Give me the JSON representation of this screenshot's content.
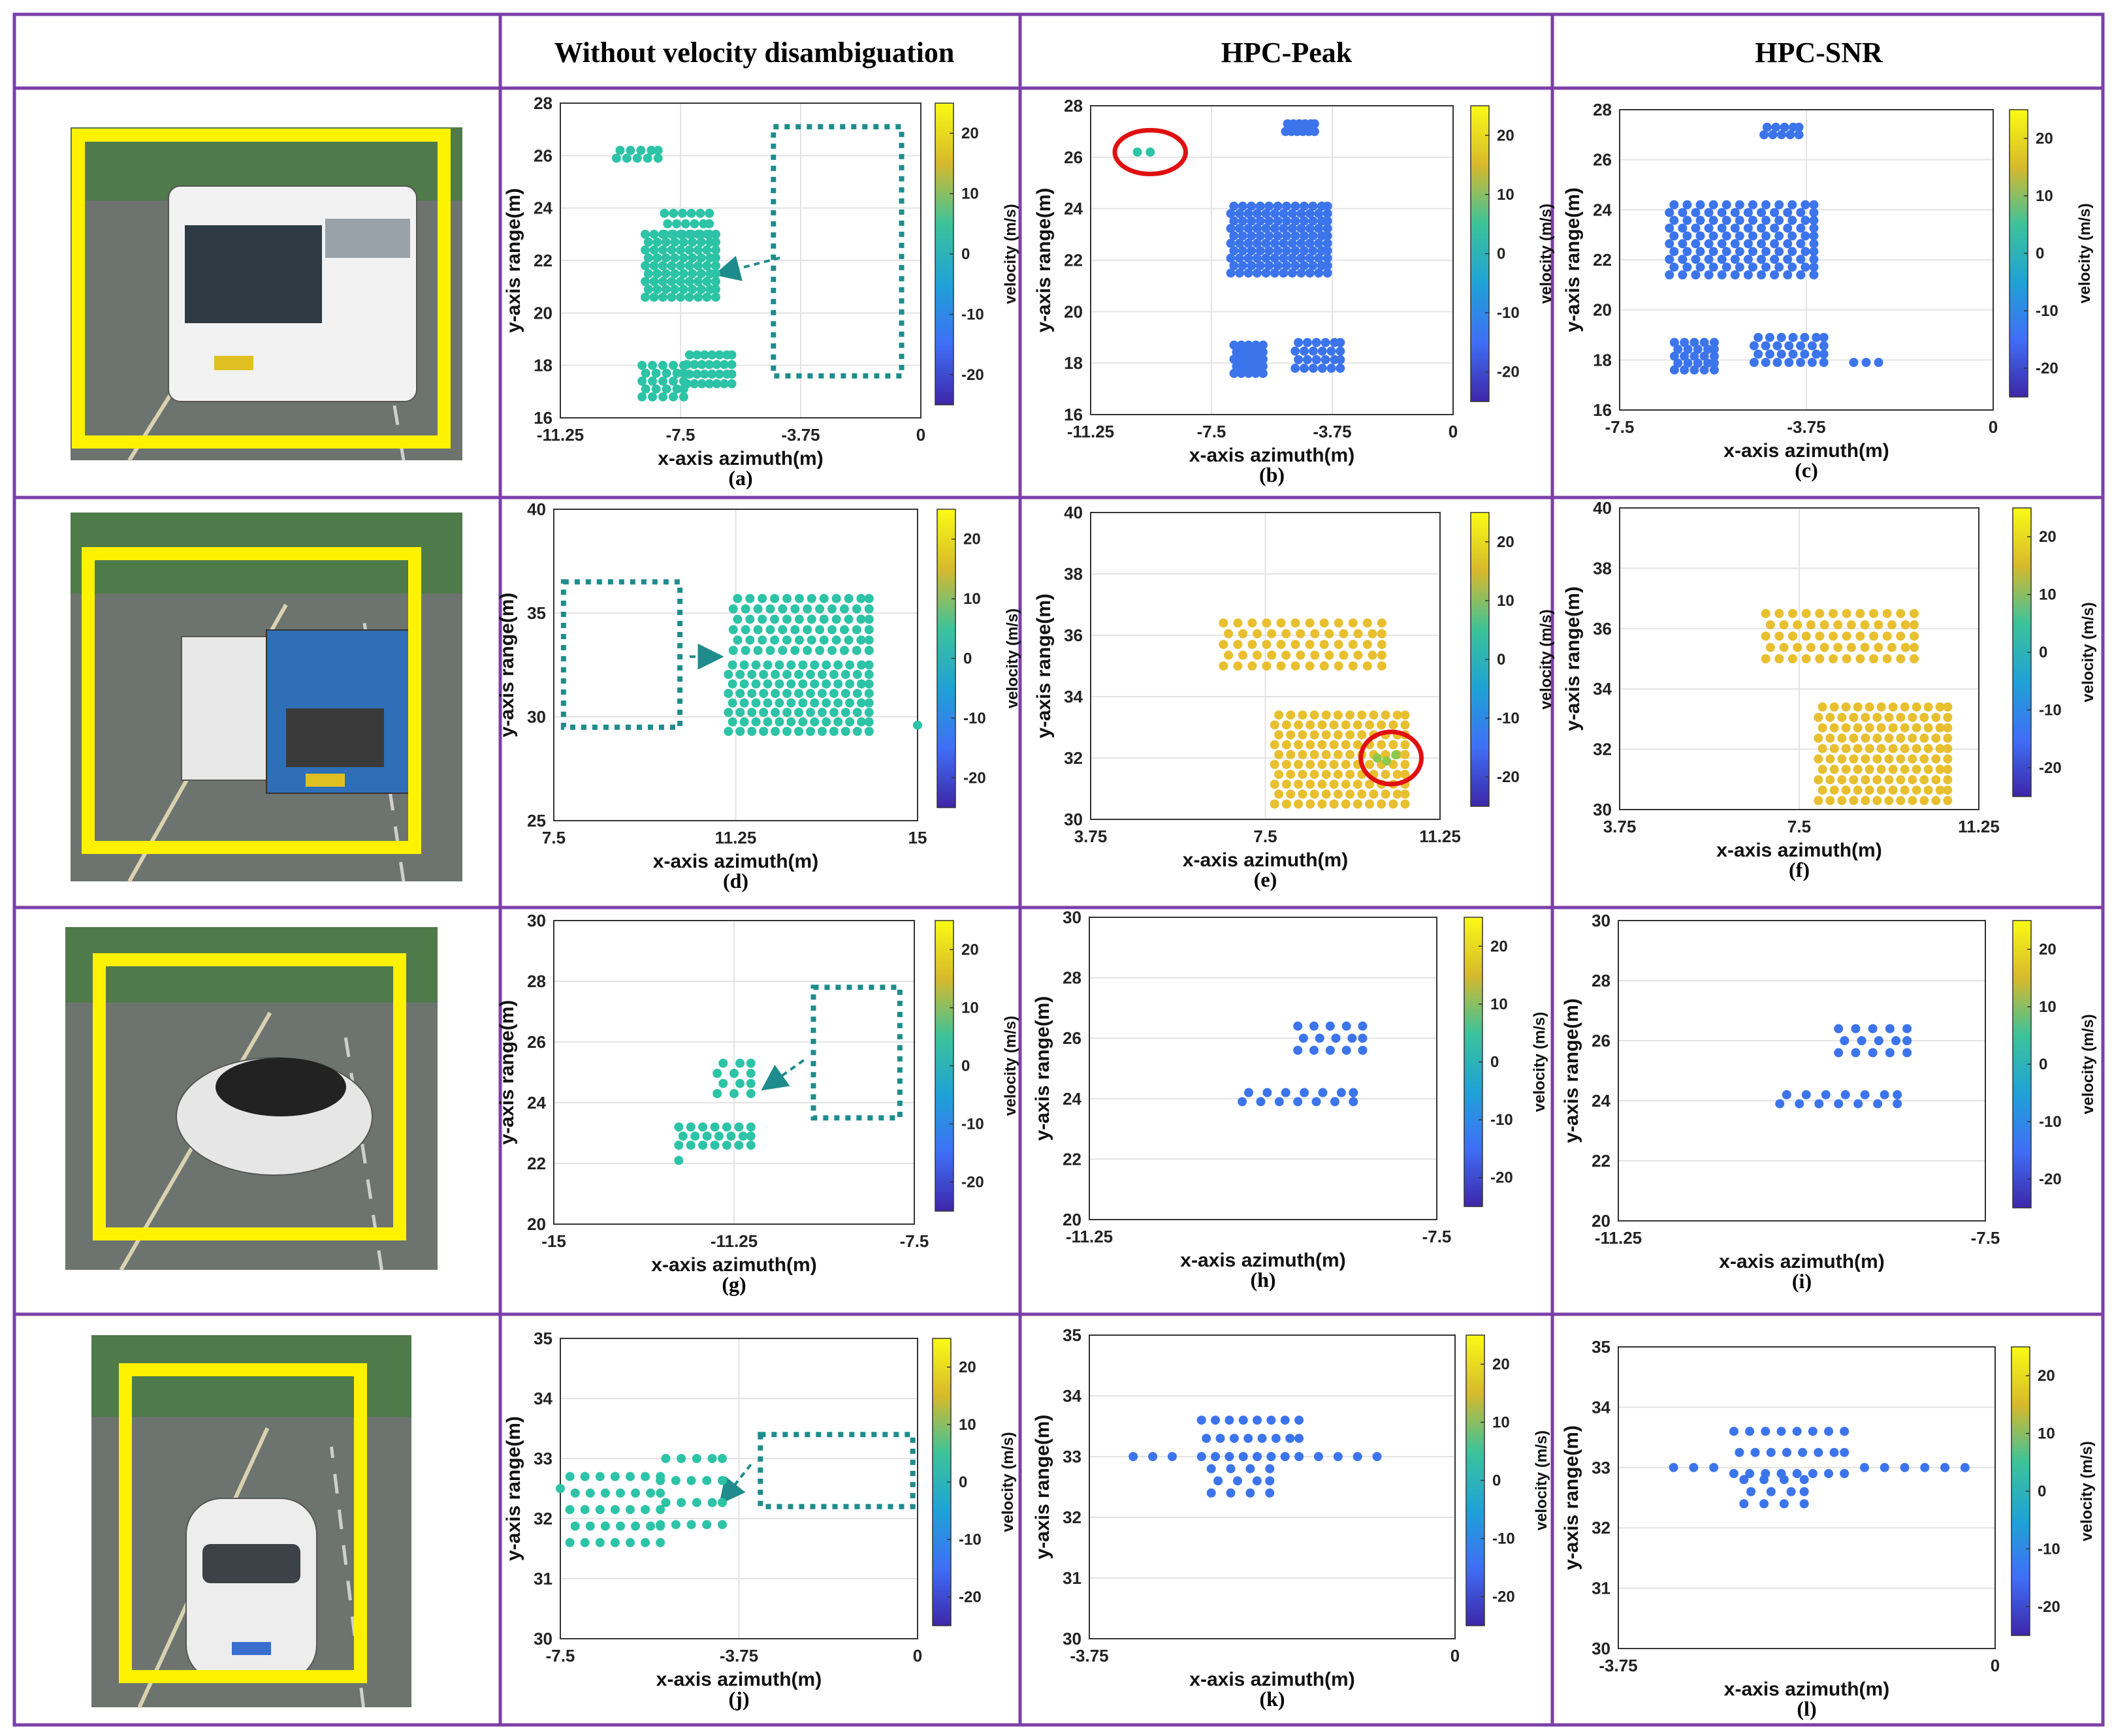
{
  "headers": [
    "",
    "Without velocity disambiguation",
    "HPC-Peak",
    "HPC-SNR"
  ],
  "colors": {
    "grid_border": "#7b3fa8",
    "teal": "#2cc3a6",
    "blue": "#3c74ec",
    "yellow": "#e8bf2e",
    "green": "#8cc84a",
    "dotted_box": "#1e8c8c",
    "circle": "#e01010",
    "photo_frame": "#fff200"
  },
  "photos": [
    {
      "vehicle": "bus-icon"
    },
    {
      "vehicle": "garbage-truck-icon"
    },
    {
      "vehicle": "car-icon"
    },
    {
      "vehicle": "sedan-icon"
    }
  ],
  "colorbar": {
    "label": "velocity (m/s)",
    "ticks": [
      -20,
      -10,
      0,
      10,
      20
    ],
    "range": [
      -25,
      25
    ]
  },
  "chart_data": [
    {
      "id": "a",
      "type": "scatter",
      "label": "(a)",
      "xlabel": "x-axis azimuth(m)",
      "ylabel": "y-axis range(m)",
      "xlim": [
        -11.25,
        0
      ],
      "ylim": [
        16,
        28
      ],
      "xticks": [
        -11.25,
        -7.5,
        -3.75,
        0
      ],
      "yticks": [
        16,
        18,
        20,
        22,
        24,
        26,
        28
      ],
      "velocity": 0,
      "clusters": [
        {
          "x": [
            -9.5,
            -8.2
          ],
          "y": [
            25.9,
            26.2
          ],
          "rows": 2,
          "cols": 5
        },
        {
          "x": [
            -8.0,
            -6.6
          ],
          "y": [
            23.0,
            23.8
          ],
          "rows": 3,
          "cols": 6
        },
        {
          "x": [
            -8.6,
            -6.4
          ],
          "y": [
            20.6,
            23.0
          ],
          "rows": 9,
          "cols": 9
        },
        {
          "x": [
            -8.7,
            -7.4
          ],
          "y": [
            16.8,
            18.0
          ],
          "rows": 5,
          "cols": 5
        },
        {
          "x": [
            -7.3,
            -5.9
          ],
          "y": [
            17.3,
            18.4
          ],
          "rows": 4,
          "cols": 7
        }
      ],
      "dotted_box": {
        "x": [
          -4.6,
          -0.6
        ],
        "y": [
          17.6,
          27.1
        ]
      },
      "arrow": {
        "from": [
          -4.4,
          22.1
        ],
        "to": [
          -6.3,
          21.5
        ]
      }
    },
    {
      "id": "b",
      "type": "scatter",
      "label": "(b)",
      "xlabel": "x-axis azimuth(m)",
      "ylabel": "y-axis range(m)",
      "xlim": [
        -11.25,
        0
      ],
      "ylim": [
        16,
        28
      ],
      "xticks": [
        -11.25,
        -7.5,
        -3.75,
        0
      ],
      "yticks": [
        16,
        18,
        20,
        22,
        24,
        26,
        28
      ],
      "velocity": -12,
      "clusters": [
        {
          "x": [
            -5.2,
            -4.3
          ],
          "y": [
            27.0,
            27.3
          ],
          "rows": 2,
          "cols": 6
        },
        {
          "x": [
            -6.9,
            -3.9
          ],
          "y": [
            21.5,
            24.1
          ],
          "rows": 10,
          "cols": 12
        },
        {
          "x": [
            -6.8,
            -5.9
          ],
          "y": [
            17.6,
            18.7
          ],
          "rows": 5,
          "cols": 5
        },
        {
          "x": [
            -4.9,
            -3.5
          ],
          "y": [
            17.8,
            18.8
          ],
          "rows": 4,
          "cols": 6
        }
      ],
      "points_green": {
        "x": [
          -9.8,
          -9.4
        ],
        "y": [
          26.2,
          26.2
        ]
      },
      "circle": {
        "x": -9.4,
        "y": 26.2,
        "rx": 1.1,
        "ry": 0.85
      }
    },
    {
      "id": "c",
      "type": "scatter",
      "label": "(c)",
      "xlabel": "x-axis azimuth(m)",
      "ylabel": "y-axis range(m)",
      "xlim": [
        -7.5,
        0
      ],
      "ylim": [
        16,
        28
      ],
      "xticks": [
        -7.5,
        -3.75,
        0
      ],
      "yticks": [
        16,
        18,
        20,
        22,
        24,
        26,
        28
      ],
      "velocity": -12,
      "clusters": [
        {
          "x": [
            -4.6,
            -3.9
          ],
          "y": [
            27.0,
            27.3
          ],
          "rows": 2,
          "cols": 5
        },
        {
          "x": [
            -6.5,
            -3.6
          ],
          "y": [
            21.4,
            24.2
          ],
          "rows": 10,
          "cols": 12
        },
        {
          "x": [
            -6.4,
            -5.6
          ],
          "y": [
            17.6,
            18.7
          ],
          "rows": 5,
          "cols": 5
        },
        {
          "x": [
            -4.8,
            -3.4
          ],
          "y": [
            17.9,
            18.9
          ],
          "rows": 4,
          "cols": 7
        },
        {
          "x": [
            -2.8,
            -2.3
          ],
          "y": [
            17.9,
            17.9
          ],
          "rows": 1,
          "cols": 3
        }
      ]
    },
    {
      "id": "d",
      "type": "scatter",
      "label": "(d)",
      "xlabel": "x-axis azimuth(m)",
      "ylabel": "y-axis range(m)",
      "xlim": [
        7.5,
        15
      ],
      "ylim": [
        25,
        40
      ],
      "xticks": [
        7.5,
        11.25,
        15
      ],
      "yticks": [
        25,
        30,
        35,
        40
      ],
      "velocity": 0,
      "clusters": [
        {
          "x": [
            11.2,
            14.0
          ],
          "y": [
            33.2,
            35.7
          ],
          "rows": 6,
          "cols": 12
        },
        {
          "x": [
            11.1,
            14.0
          ],
          "y": [
            29.3,
            32.5
          ],
          "rows": 8,
          "cols": 13
        }
      ],
      "points": {
        "x": [
          15.0
        ],
        "y": [
          29.6
        ]
      },
      "dotted_box": {
        "x": [
          7.7,
          10.1
        ],
        "y": [
          29.5,
          36.5
        ]
      },
      "arrow": {
        "from": [
          10.3,
          32.9
        ],
        "to": [
          10.9,
          32.9
        ]
      }
    },
    {
      "id": "e",
      "type": "scatter",
      "label": "(e)",
      "xlabel": "x-axis azimuth(m)",
      "ylabel": "y-axis range(m)",
      "xlim": [
        3.75,
        11.25
      ],
      "ylim": [
        30,
        40
      ],
      "xticks": [
        3.75,
        7.5,
        11.25
      ],
      "yticks": [
        30,
        32,
        34,
        36,
        38,
        40
      ],
      "velocity": 17,
      "clusters": [
        {
          "x": [
            6.6,
            10.0
          ],
          "y": [
            35.0,
            36.4
          ],
          "rows": 5,
          "cols": 12
        },
        {
          "x": [
            7.7,
            10.5
          ],
          "y": [
            30.5,
            33.4
          ],
          "rows": 10,
          "cols": 12
        }
      ],
      "points_green": {
        "x": [
          9.9,
          10.1,
          10.3
        ],
        "y": [
          32.0,
          31.9,
          32.1
        ]
      },
      "circle": {
        "x": 10.2,
        "y": 32.0,
        "rx": 0.65,
        "ry": 0.85
      }
    },
    {
      "id": "f",
      "type": "scatter",
      "label": "(f)",
      "xlabel": "x-axis azimuth(m)",
      "ylabel": "y-axis range(m)",
      "xlim": [
        3.75,
        11.25
      ],
      "ylim": [
        30,
        40
      ],
      "xticks": [
        3.75,
        7.5,
        11.25
      ],
      "yticks": [
        30,
        32,
        34,
        36,
        38,
        40
      ],
      "velocity": 17,
      "clusters": [
        {
          "x": [
            6.8,
            9.9
          ],
          "y": [
            35.0,
            36.5
          ],
          "rows": 5,
          "cols": 12
        },
        {
          "x": [
            7.9,
            10.6
          ],
          "y": [
            30.3,
            33.4
          ],
          "rows": 10,
          "cols": 12
        }
      ]
    },
    {
      "id": "g",
      "type": "scatter",
      "label": "(g)",
      "xlabel": "x-axis azimuth(m)",
      "ylabel": "y-axis range(m)",
      "xlim": [
        -15,
        -7.5
      ],
      "ylim": [
        20,
        30
      ],
      "xticks": [
        -15,
        -11.25,
        -7.5
      ],
      "yticks": [
        20,
        22,
        24,
        26,
        28,
        30
      ],
      "velocity": 0,
      "clusters": [
        {
          "x": [
            -11.6,
            -10.9
          ],
          "y": [
            24.3,
            25.3
          ],
          "rows": 4,
          "cols": 3
        },
        {
          "x": [
            -12.4,
            -10.9
          ],
          "y": [
            22.6,
            23.2
          ],
          "rows": 3,
          "cols": 7
        }
      ],
      "points": {
        "x": [
          -12.4
        ],
        "y": [
          22.1
        ]
      },
      "dotted_box": {
        "x": [
          -9.6,
          -7.8
        ],
        "y": [
          23.5,
          27.8
        ]
      },
      "arrow": {
        "from": [
          -9.8,
          25.4
        ],
        "to": [
          -10.6,
          24.5
        ]
      }
    },
    {
      "id": "h",
      "type": "scatter",
      "label": "(h)",
      "xlabel": "x-axis azimuth(m)",
      "ylabel": "y-axis range(m)",
      "xlim": [
        -11.25,
        -7.5
      ],
      "ylim": [
        20,
        30
      ],
      "xticks": [
        -11.25,
        -7.5
      ],
      "yticks": [
        20,
        22,
        24,
        26,
        28,
        30
      ],
      "velocity": -12,
      "clusters": [
        {
          "x": [
            -9.0,
            -8.3
          ],
          "y": [
            25.6,
            26.4
          ],
          "rows": 3,
          "cols": 5
        },
        {
          "x": [
            -9.6,
            -8.4
          ],
          "y": [
            23.9,
            24.2
          ],
          "rows": 2,
          "cols": 7
        }
      ]
    },
    {
      "id": "i",
      "type": "scatter",
      "label": "(i)",
      "xlabel": "x-axis azimuth(m)",
      "ylabel": "y-axis range(m)",
      "xlim": [
        -11.25,
        -7.5
      ],
      "ylim": [
        20,
        30
      ],
      "xticks": [
        -11.25,
        -7.5
      ],
      "yticks": [
        20,
        22,
        24,
        26,
        28,
        30
      ],
      "velocity": -12,
      "clusters": [
        {
          "x": [
            -9.0,
            -8.3
          ],
          "y": [
            25.6,
            26.4
          ],
          "rows": 3,
          "cols": 5
        },
        {
          "x": [
            -9.6,
            -8.4
          ],
          "y": [
            23.9,
            24.2
          ],
          "rows": 2,
          "cols": 7
        }
      ]
    },
    {
      "id": "j",
      "type": "scatter",
      "label": "(j)",
      "xlabel": "x-axis azimuth(m)",
      "ylabel": "y-axis range(m)",
      "xlim": [
        -7.5,
        0
      ],
      "ylim": [
        30,
        35
      ],
      "xticks": [
        -7.5,
        -3.75,
        0
      ],
      "yticks": [
        30,
        31,
        32,
        33,
        34,
        35
      ],
      "velocity": 0,
      "clusters": [
        {
          "x": [
            -7.3,
            -5.4
          ],
          "y": [
            31.6,
            32.7
          ],
          "rows": 5,
          "cols": 7
        },
        {
          "x": [
            -5.4,
            -4.1
          ],
          "y": [
            31.9,
            33.0
          ],
          "rows": 4,
          "cols": 5
        }
      ],
      "points": {
        "x": [
          -7.5
        ],
        "y": [
          32.5
        ]
      },
      "dotted_box": {
        "x": [
          -3.3,
          -0.1
        ],
        "y": [
          32.2,
          33.4
        ]
      },
      "arrow": {
        "from": [
          -3.5,
          32.9
        ],
        "to": [
          -4.1,
          32.3
        ]
      }
    },
    {
      "id": "k",
      "type": "scatter",
      "label": "(k)",
      "xlabel": "x-axis azimuth(m)",
      "ylabel": "y-axis range(m)",
      "xlim": [
        -3.75,
        0
      ],
      "ylim": [
        30,
        35
      ],
      "xticks": [
        -3.75,
        0
      ],
      "yticks": [
        30,
        31,
        32,
        33,
        34,
        35
      ],
      "velocity": -12,
      "clusters": [
        {
          "x": [
            -2.6,
            -1.6
          ],
          "y": [
            33.0,
            33.6
          ],
          "rows": 3,
          "cols": 8
        },
        {
          "x": [
            -2.5,
            -1.9
          ],
          "y": [
            32.4,
            32.8
          ],
          "rows": 3,
          "cols": 4
        }
      ],
      "points": {
        "x": [
          -3.3,
          -3.1,
          -2.9,
          -1.4,
          -1.2,
          -1.0,
          -0.8
        ],
        "y": [
          33.0,
          33.0,
          33.0,
          33.0,
          33.0,
          33.0,
          33.0
        ]
      }
    },
    {
      "id": "l",
      "type": "scatter",
      "label": "(l)",
      "xlabel": "x-axis azimuth(m)",
      "ylabel": "y-axis range(m)",
      "xlim": [
        -3.75,
        0
      ],
      "ylim": [
        30,
        35
      ],
      "xticks": [
        -3.75,
        0
      ],
      "yticks": [
        30,
        31,
        32,
        33,
        34,
        35
      ],
      "velocity": -12,
      "clusters": [
        {
          "x": [
            -2.6,
            -1.5
          ],
          "y": [
            32.9,
            33.6
          ],
          "rows": 3,
          "cols": 8
        },
        {
          "x": [
            -2.5,
            -1.9
          ],
          "y": [
            32.4,
            32.8
          ],
          "rows": 3,
          "cols": 4
        }
      ],
      "points": {
        "x": [
          -3.2,
          -3.0,
          -2.8,
          -1.3,
          -1.1,
          -0.9,
          -0.7,
          -0.5,
          -0.3
        ],
        "y": [
          33.0,
          33.0,
          33.0,
          33.0,
          33.0,
          33.0,
          33.0,
          33.0,
          33.0
        ]
      }
    }
  ]
}
